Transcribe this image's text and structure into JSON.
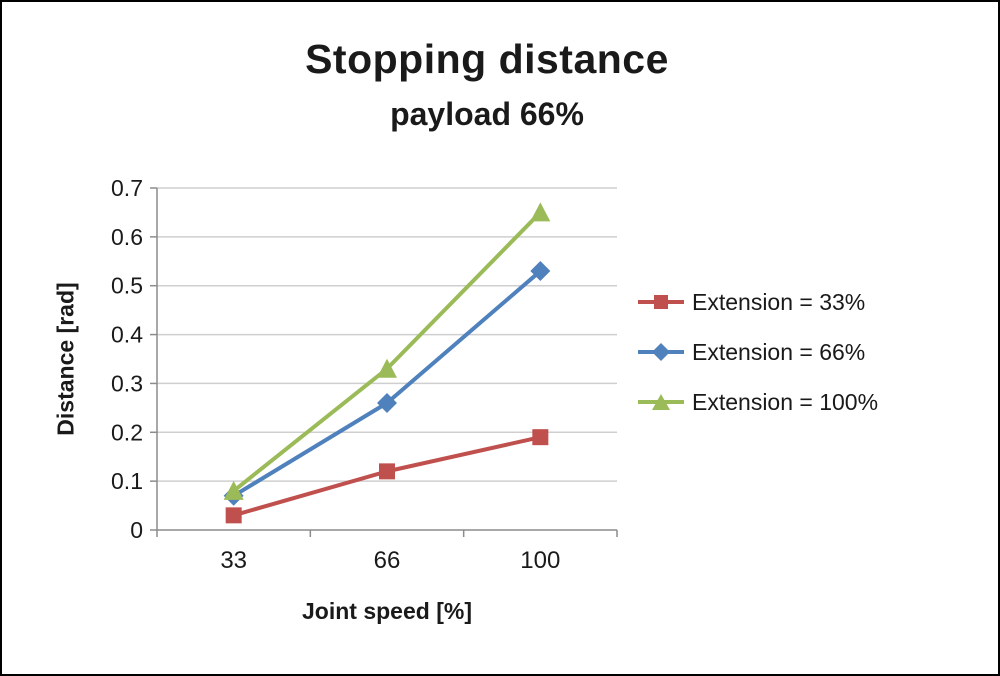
{
  "chart_data": {
    "type": "line",
    "title": "Stopping distance",
    "subtitle": "payload 66%",
    "xlabel": "Joint speed [%]",
    "ylabel": "Distance [rad]",
    "categories": [
      "33",
      "66",
      "100"
    ],
    "series": [
      {
        "name": "Extension = 33%",
        "marker": "square",
        "color": "#C0504D",
        "values": [
          0.03,
          0.12,
          0.19
        ]
      },
      {
        "name": "Extension = 66%",
        "marker": "diamond",
        "color": "#4F81BD",
        "values": [
          0.07,
          0.26,
          0.53
        ]
      },
      {
        "name": "Extension = 100%",
        "marker": "triangle",
        "color": "#9BBB59",
        "values": [
          0.08,
          0.33,
          0.65
        ]
      }
    ],
    "ylim": [
      0,
      0.7
    ],
    "ytick_step": 0.1,
    "ytick_labels": [
      "0",
      "0.1",
      "0.2",
      "0.3",
      "0.4",
      "0.5",
      "0.6",
      "0.7"
    ],
    "grid": "horizontal",
    "legend_position": "right",
    "colors": {
      "gridline": "#CFCFCF",
      "axis": "#8C8C8C",
      "text": "#1a1a1a"
    }
  }
}
